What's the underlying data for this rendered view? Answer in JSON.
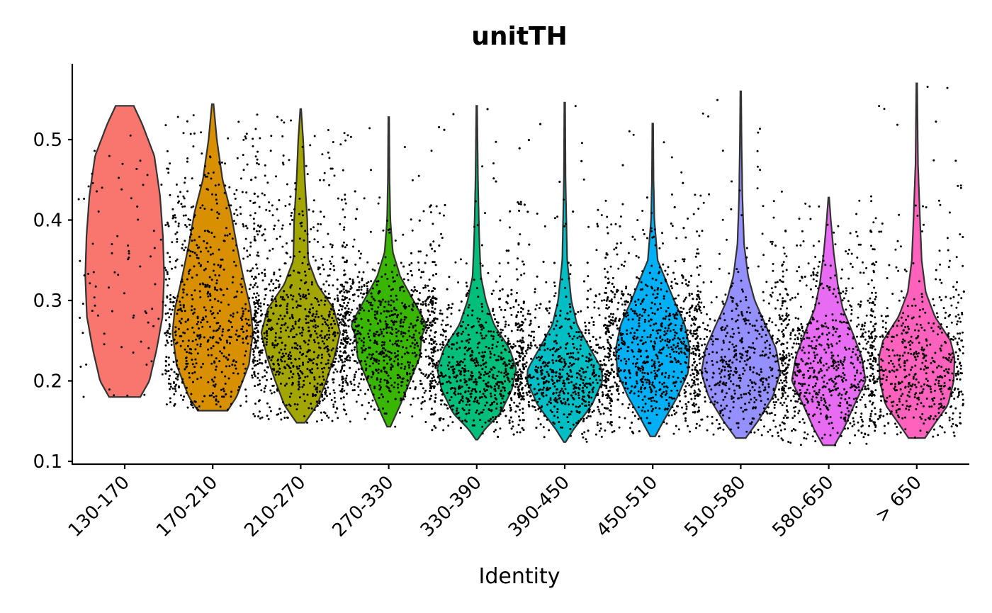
{
  "chart_data": {
    "type": "violin",
    "title": "unitTH",
    "xlabel": "Identity",
    "ylabel": "",
    "ylim": [
      0.1,
      0.59
    ],
    "yticks": [
      0.1,
      0.2,
      0.3,
      0.4,
      0.5
    ],
    "ytick_labels": [
      "0.1",
      "0.2",
      "0.3",
      "0.4",
      "0.5"
    ],
    "categories": [
      "130-170",
      "170-210",
      "210-270",
      "270-330",
      "330-390",
      "390-450",
      "450-510",
      "510-580",
      "580-650",
      "> 650"
    ],
    "colors": [
      "#F8766D",
      "#D89000",
      "#A3A500",
      "#39B600",
      "#00BF7D",
      "#00BFC4",
      "#00B0F6",
      "#9590FF",
      "#E76BF3",
      "#FF62BC"
    ],
    "series": [
      {
        "category": "130-170",
        "color": "#F8766D",
        "min": 0.18,
        "max": 0.542,
        "points": 90,
        "profile": [
          [
            0.18,
            0.38
          ],
          [
            0.2,
            0.6
          ],
          [
            0.24,
            0.78
          ],
          [
            0.28,
            0.92
          ],
          [
            0.33,
            0.96
          ],
          [
            0.38,
            0.93
          ],
          [
            0.43,
            0.86
          ],
          [
            0.48,
            0.72
          ],
          [
            0.52,
            0.42
          ],
          [
            0.542,
            0.22
          ]
        ]
      },
      {
        "category": "170-210",
        "color": "#D89000",
        "min": 0.163,
        "max": 0.544,
        "points": 700,
        "profile": [
          [
            0.163,
            0.36
          ],
          [
            0.18,
            0.58
          ],
          [
            0.22,
            0.88
          ],
          [
            0.26,
            0.98
          ],
          [
            0.29,
            0.92
          ],
          [
            0.33,
            0.74
          ],
          [
            0.37,
            0.58
          ],
          [
            0.41,
            0.44
          ],
          [
            0.45,
            0.24
          ],
          [
            0.5,
            0.1
          ],
          [
            0.544,
            0.02
          ]
        ]
      },
      {
        "category": "210-270",
        "color": "#A3A500",
        "min": 0.148,
        "max": 0.538,
        "points": 900,
        "profile": [
          [
            0.148,
            0.1
          ],
          [
            0.17,
            0.4
          ],
          [
            0.2,
            0.62
          ],
          [
            0.23,
            0.82
          ],
          [
            0.26,
            0.96
          ],
          [
            0.29,
            0.8
          ],
          [
            0.32,
            0.4
          ],
          [
            0.35,
            0.18
          ],
          [
            0.4,
            0.16
          ],
          [
            0.45,
            0.1
          ],
          [
            0.5,
            0.06
          ],
          [
            0.538,
            0.01
          ]
        ]
      },
      {
        "category": "270-330",
        "color": "#39B600",
        "min": 0.143,
        "max": 0.528,
        "points": 900,
        "profile": [
          [
            0.143,
            0.04
          ],
          [
            0.17,
            0.28
          ],
          [
            0.2,
            0.52
          ],
          [
            0.23,
            0.76
          ],
          [
            0.255,
            0.8
          ],
          [
            0.27,
            0.92
          ],
          [
            0.3,
            0.6
          ],
          [
            0.33,
            0.28
          ],
          [
            0.36,
            0.1
          ],
          [
            0.4,
            0.04
          ],
          [
            0.45,
            0.02
          ],
          [
            0.528,
            0.01
          ]
        ]
      },
      {
        "category": "330-390",
        "color": "#00BF7D",
        "min": 0.127,
        "max": 0.542,
        "points": 1100,
        "profile": [
          [
            0.127,
            0.02
          ],
          [
            0.14,
            0.2
          ],
          [
            0.16,
            0.58
          ],
          [
            0.19,
            0.86
          ],
          [
            0.215,
            0.96
          ],
          [
            0.24,
            0.8
          ],
          [
            0.27,
            0.42
          ],
          [
            0.3,
            0.22
          ],
          [
            0.33,
            0.1
          ],
          [
            0.38,
            0.06
          ],
          [
            0.45,
            0.03
          ],
          [
            0.542,
            0.01
          ]
        ]
      },
      {
        "category": "390-450",
        "color": "#00BFC4",
        "min": 0.124,
        "max": 0.546,
        "points": 1000,
        "profile": [
          [
            0.124,
            0.02
          ],
          [
            0.14,
            0.22
          ],
          [
            0.17,
            0.66
          ],
          [
            0.2,
            0.92
          ],
          [
            0.215,
            0.9
          ],
          [
            0.24,
            0.62
          ],
          [
            0.27,
            0.3
          ],
          [
            0.3,
            0.16
          ],
          [
            0.35,
            0.06
          ],
          [
            0.4,
            0.04
          ],
          [
            0.45,
            0.02
          ],
          [
            0.546,
            0.01
          ]
        ]
      },
      {
        "category": "450-510",
        "color": "#00B0F6",
        "min": 0.131,
        "max": 0.52,
        "points": 1000,
        "profile": [
          [
            0.131,
            0.06
          ],
          [
            0.15,
            0.26
          ],
          [
            0.18,
            0.6
          ],
          [
            0.21,
            0.86
          ],
          [
            0.24,
            0.9
          ],
          [
            0.27,
            0.78
          ],
          [
            0.3,
            0.52
          ],
          [
            0.33,
            0.28
          ],
          [
            0.35,
            0.12
          ],
          [
            0.4,
            0.04
          ],
          [
            0.45,
            0.02
          ],
          [
            0.52,
            0.01
          ]
        ]
      },
      {
        "category": "510-580",
        "color": "#9590FF",
        "min": 0.129,
        "max": 0.56,
        "points": 600,
        "profile": [
          [
            0.129,
            0.12
          ],
          [
            0.15,
            0.42
          ],
          [
            0.18,
            0.78
          ],
          [
            0.21,
            0.96
          ],
          [
            0.24,
            0.86
          ],
          [
            0.27,
            0.6
          ],
          [
            0.3,
            0.34
          ],
          [
            0.33,
            0.18
          ],
          [
            0.37,
            0.08
          ],
          [
            0.43,
            0.04
          ],
          [
            0.5,
            0.02
          ],
          [
            0.56,
            0.01
          ]
        ]
      },
      {
        "category": "580-650",
        "color": "#E76BF3",
        "min": 0.12,
        "max": 0.428,
        "points": 750,
        "profile": [
          [
            0.12,
            0.14
          ],
          [
            0.14,
            0.36
          ],
          [
            0.17,
            0.62
          ],
          [
            0.2,
            0.9
          ],
          [
            0.23,
            0.8
          ],
          [
            0.26,
            0.58
          ],
          [
            0.29,
            0.34
          ],
          [
            0.32,
            0.22
          ],
          [
            0.36,
            0.12
          ],
          [
            0.4,
            0.05
          ],
          [
            0.428,
            0.01
          ]
        ]
      },
      {
        "category": "> 650",
        "color": "#FF62BC",
        "min": 0.129,
        "max": 0.57,
        "points": 600,
        "profile": [
          [
            0.129,
            0.2
          ],
          [
            0.15,
            0.48
          ],
          [
            0.17,
            0.76
          ],
          [
            0.2,
            0.9
          ],
          [
            0.23,
            0.92
          ],
          [
            0.25,
            0.82
          ],
          [
            0.28,
            0.44
          ],
          [
            0.31,
            0.22
          ],
          [
            0.35,
            0.12
          ],
          [
            0.4,
            0.08
          ],
          [
            0.47,
            0.03
          ],
          [
            0.57,
            0.01
          ]
        ]
      }
    ]
  }
}
